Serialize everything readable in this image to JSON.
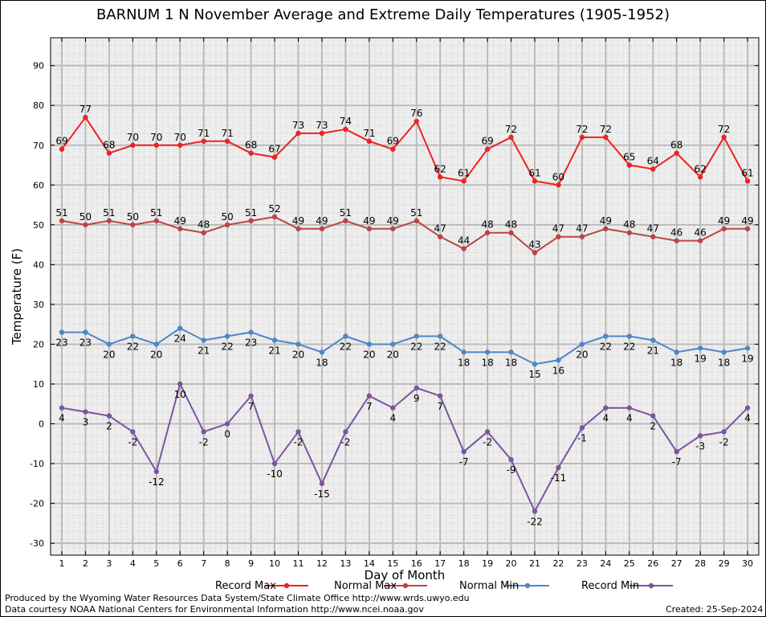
{
  "chart_data": {
    "type": "line",
    "title": "BARNUM 1 N November Average and Extreme Daily Temperatures (1905-1952)",
    "xlabel": "Day of Month",
    "ylabel": "Temperature (F)",
    "ylim": [
      -33,
      97
    ],
    "yticks": [
      -30,
      -20,
      -10,
      0,
      10,
      20,
      30,
      40,
      50,
      60,
      70,
      80,
      90
    ],
    "x": [
      1,
      2,
      3,
      4,
      5,
      6,
      7,
      8,
      9,
      10,
      11,
      12,
      13,
      14,
      15,
      16,
      17,
      18,
      19,
      20,
      21,
      22,
      23,
      24,
      25,
      26,
      27,
      28,
      29,
      30
    ],
    "grid": true,
    "legend_position": "bottom",
    "series": [
      {
        "name": "Record Max",
        "color": "#ee2222",
        "label_position": "above",
        "values": [
          69,
          77,
          68,
          70,
          70,
          70,
          71,
          71,
          68,
          67,
          73,
          73,
          74,
          71,
          69,
          76,
          62,
          61,
          69,
          72,
          61,
          60,
          72,
          72,
          65,
          64,
          68,
          62,
          72,
          61
        ]
      },
      {
        "name": "Normal Max",
        "color": "#bb4444",
        "label_position": "above",
        "values": [
          51,
          50,
          51,
          50,
          51,
          49,
          48,
          50,
          51,
          52,
          49,
          49,
          51,
          49,
          49,
          51,
          47,
          44,
          48,
          48,
          43,
          47,
          47,
          49,
          48,
          47,
          46,
          46,
          49,
          49
        ]
      },
      {
        "name": "Normal Min",
        "color": "#4f86c6",
        "label_position": "below",
        "values": [
          23,
          23,
          20,
          22,
          20,
          24,
          21,
          22,
          23,
          21,
          20,
          18,
          22,
          20,
          20,
          22,
          22,
          18,
          18,
          18,
          15,
          16,
          20,
          22,
          22,
          21,
          18,
          19,
          18,
          19
        ]
      },
      {
        "name": "Record Min",
        "color": "#7b559e",
        "label_position": "below",
        "values": [
          4,
          3,
          2,
          -2,
          -12,
          10,
          -2,
          0,
          7,
          -10,
          -2,
          -15,
          -2,
          7,
          4,
          9,
          7,
          -7,
          -2,
          -9,
          -22,
          -11,
          -1,
          4,
          4,
          2,
          -7,
          -3,
          -2,
          4
        ]
      }
    ]
  },
  "footer": {
    "produced_by": "Produced by the Wyoming Water Resources Data System/State Climate Office http://www.wrds.uwyo.edu",
    "courtesy": "Data courtesy NOAA National Centers for Environmental Information http://www.ncei.noaa.gov",
    "created": "Created:  25-Sep-2024"
  },
  "colors": {
    "grid": "#bbbbbb",
    "grid_minor": "#cccccc",
    "plot_bg": "#eeeeee"
  }
}
